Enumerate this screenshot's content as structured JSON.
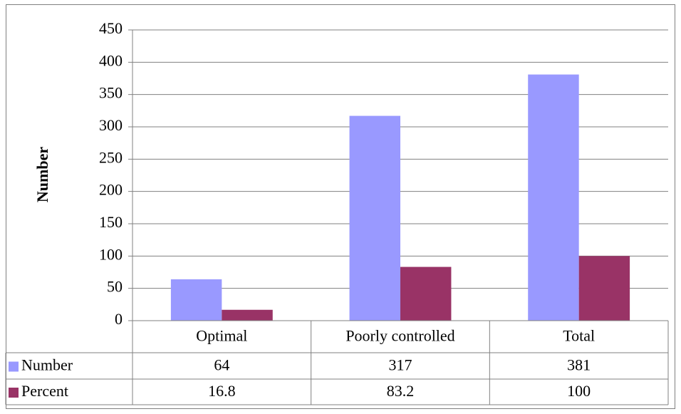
{
  "chart_data": {
    "type": "bar",
    "y_label": "Number",
    "categories": [
      "Optimal",
      "Poorly controlled",
      "Total"
    ],
    "series": [
      {
        "name": "Number",
        "color": "#9999ff",
        "values": [
          64,
          317,
          381
        ]
      },
      {
        "name": "Percent",
        "color": "#993366",
        "values": [
          16.8,
          83.2,
          100
        ]
      }
    ],
    "ylim": [
      0,
      450
    ],
    "yticks": [
      0,
      50,
      100,
      150,
      200,
      250,
      300,
      350,
      400,
      450
    ],
    "grid": true,
    "data_table": true
  }
}
